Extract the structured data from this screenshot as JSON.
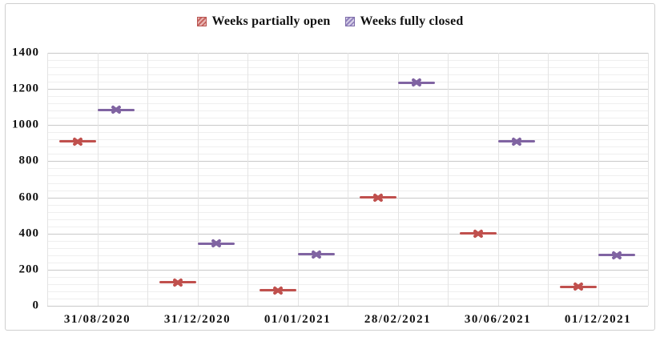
{
  "chart_data": {
    "type": "scatter",
    "title": "",
    "marker_style": "x-dash",
    "categories": [
      "31/08/2020",
      "31/12/2020",
      "01/01/2021",
      "28/02/2021",
      "30/06/2021",
      "01/12/2021"
    ],
    "series": [
      {
        "name": "Weeks partially open",
        "color": "#c0504d",
        "values": [
          910,
          130,
          85,
          600,
          400,
          105
        ]
      },
      {
        "name": "Weeks fully closed",
        "color": "#8064a2",
        "values": [
          1085,
          345,
          285,
          1235,
          910,
          280
        ]
      }
    ],
    "xlabel": "",
    "ylabel": "",
    "ylim": [
      0,
      1400
    ],
    "y_major_step": 200,
    "y_minor_step": 40,
    "y_ticks": [
      "1400",
      "1200",
      "1000",
      "800",
      "600",
      "400",
      "200",
      "0"
    ],
    "grid": true,
    "legend_position": "top-center"
  }
}
